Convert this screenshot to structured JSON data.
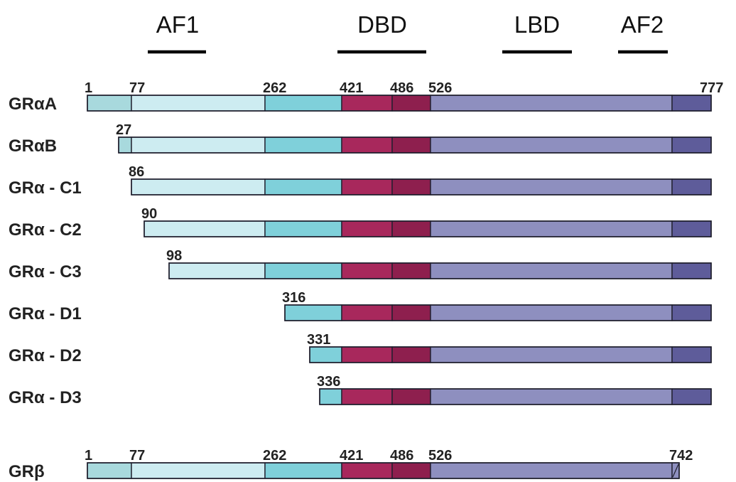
{
  "domains": [
    {
      "label": "AF1"
    },
    {
      "label": "DBD"
    },
    {
      "label": "LBD"
    },
    {
      "label": "AF2"
    }
  ],
  "colors": {
    "nterm": "#a8d9dd",
    "af1": "#cdecf1",
    "linker": "#7fd0da",
    "dbd1": "#a8285c",
    "dbd2": "#8e1f4e",
    "lbd": "#8e8fbf",
    "af2": "#5e5c9a",
    "outline": "#1f1f2e",
    "text": "#222222"
  },
  "isoforms": [
    {
      "name": "GRαA",
      "start": 1,
      "end": 777,
      "start_label": "1",
      "end_label": "777",
      "internal_labels": [
        "77",
        "262",
        "421",
        "486",
        "526"
      ]
    },
    {
      "name": "GRαB",
      "start": 27,
      "end": 777,
      "start_label": "27"
    },
    {
      "name": "GRα - C1",
      "start": 86,
      "end": 777,
      "start_label": "86"
    },
    {
      "name": "GRα - C2",
      "start": 90,
      "end": 777,
      "start_label": "90"
    },
    {
      "name": "GRα - C3",
      "start": 98,
      "end": 777,
      "start_label": "98"
    },
    {
      "name": "GRα - D1",
      "start": 316,
      "end": 777,
      "start_label": "316"
    },
    {
      "name": "GRα - D2",
      "start": 331,
      "end": 777,
      "start_label": "331"
    },
    {
      "name": "GRα - D3",
      "start": 336,
      "end": 777,
      "start_label": "336"
    },
    {
      "name": "GRβ",
      "start": 1,
      "end": 742,
      "start_label": "1",
      "end_label": "742",
      "internal_labels": [
        "77",
        "262",
        "421",
        "486",
        "526"
      ]
    }
  ]
}
